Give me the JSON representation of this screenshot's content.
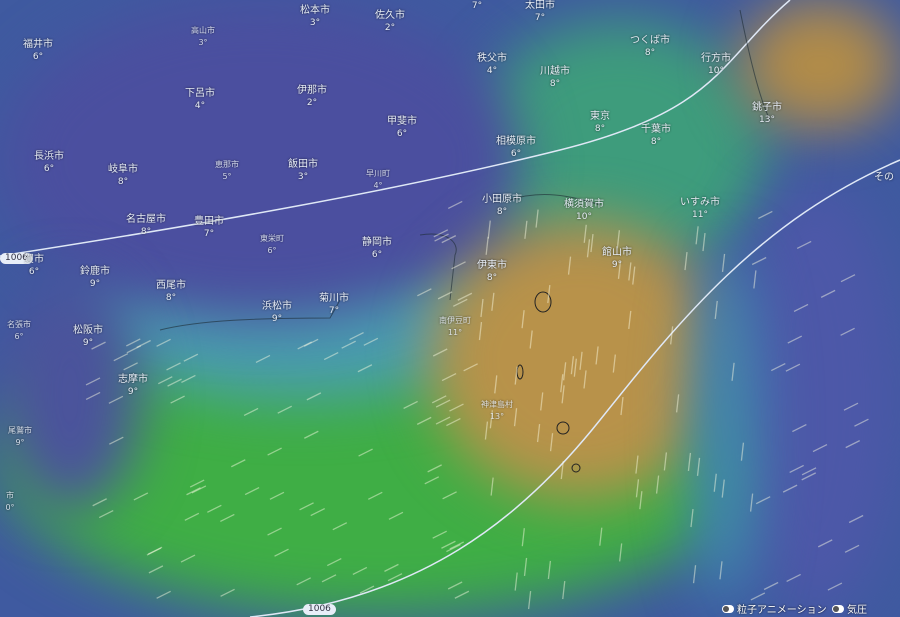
{
  "map": {
    "layer": "temperature",
    "colors": {
      "cold": "#4a4fa0",
      "cool": "#3f7fa8",
      "mild": "#3cae3c",
      "warm": "#b8924a",
      "isobar": "#dfe8f6"
    },
    "isobars": [
      {
        "label": "1006"
      },
      {
        "label": "1006"
      }
    ],
    "edge_text": "その",
    "cities": [
      {
        "name": "",
        "temp": "7°"
      },
      {
        "name": "太田市",
        "temp": "7°"
      },
      {
        "name": "松本市",
        "temp": "3°"
      },
      {
        "name": "佐久市",
        "temp": "2°"
      },
      {
        "name": "高山市",
        "temp": "3°"
      },
      {
        "name": "福井市",
        "temp": "6°"
      },
      {
        "name": "下呂市",
        "temp": "4°"
      },
      {
        "name": "伊那市",
        "temp": "2°"
      },
      {
        "name": "甲斐市",
        "temp": "6°"
      },
      {
        "name": "長浜市",
        "temp": "6°"
      },
      {
        "name": "岐阜市",
        "temp": "8°"
      },
      {
        "name": "恵那市",
        "temp": "5°"
      },
      {
        "name": "飯田市",
        "temp": "3°"
      },
      {
        "name": "早川町",
        "temp": "4°"
      },
      {
        "name": "秩父市",
        "temp": "4°"
      },
      {
        "name": "川越市",
        "temp": "8°"
      },
      {
        "name": "つくば市",
        "temp": "8°"
      },
      {
        "name": "行方市",
        "temp": "10°"
      },
      {
        "name": "銚子市",
        "temp": "13°"
      },
      {
        "name": "東京",
        "temp": "8°"
      },
      {
        "name": "千葉市",
        "temp": "8°"
      },
      {
        "name": "相模原市",
        "temp": "6°"
      },
      {
        "name": "小田原市",
        "temp": "8°"
      },
      {
        "name": "横須賀市",
        "temp": "10°"
      },
      {
        "name": "いすみ市",
        "temp": "11°"
      },
      {
        "name": "名古屋市",
        "temp": "8°"
      },
      {
        "name": "豊田市",
        "temp": "7°"
      },
      {
        "name": "東栄町",
        "temp": "6°"
      },
      {
        "name": "静岡市",
        "temp": "6°"
      },
      {
        "name": "賀市",
        "temp": "6°"
      },
      {
        "name": "鈴鹿市",
        "temp": "9°"
      },
      {
        "name": "西尾市",
        "temp": "8°"
      },
      {
        "name": "浜松市",
        "temp": "9°"
      },
      {
        "name": "菊川市",
        "temp": "7°"
      },
      {
        "name": "名張市",
        "temp": "6°"
      },
      {
        "name": "松阪市",
        "temp": "9°"
      },
      {
        "name": "志摩市",
        "temp": "9°"
      },
      {
        "name": "尾鷲市",
        "temp": "9°"
      },
      {
        "name": "伊東市",
        "temp": "8°"
      },
      {
        "name": "館山市",
        "temp": "9°"
      },
      {
        "name": "南伊豆町",
        "temp": "11°"
      },
      {
        "name": "神津島村",
        "temp": "13°"
      },
      {
        "name": "市",
        "temp": "0°"
      }
    ]
  },
  "controls": {
    "particles_label": "粒子アニメーション",
    "pressure_label": "気圧"
  }
}
